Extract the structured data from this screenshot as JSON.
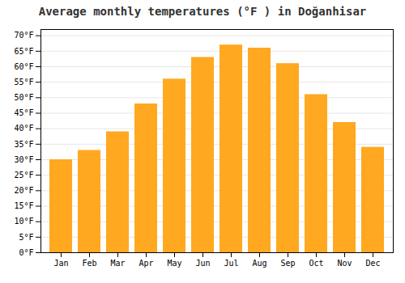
{
  "chart_data": {
    "type": "bar",
    "title": "Average monthly temperatures (°F ) in Doğanhisar",
    "categories": [
      "Jan",
      "Feb",
      "Mar",
      "Apr",
      "May",
      "Jun",
      "Jul",
      "Aug",
      "Sep",
      "Oct",
      "Nov",
      "Dec"
    ],
    "values": [
      30,
      33,
      39,
      48,
      56,
      63,
      67,
      66,
      61,
      51,
      42,
      34
    ],
    "color": "#FFA820",
    "ylim": [
      0,
      72
    ],
    "yticks": [
      {
        "value": 0,
        "label": "0°F"
      },
      {
        "value": 5,
        "label": "5°F"
      },
      {
        "value": 10,
        "label": "10°F"
      },
      {
        "value": 15,
        "label": "15°F"
      },
      {
        "value": 20,
        "label": "20°F"
      },
      {
        "value": 25,
        "label": "25°F"
      },
      {
        "value": 30,
        "label": "30°F"
      },
      {
        "value": 35,
        "label": "35°F"
      },
      {
        "value": 40,
        "label": "40°F"
      },
      {
        "value": 45,
        "label": "45°F"
      },
      {
        "value": 50,
        "label": "50°F"
      },
      {
        "value": 55,
        "label": "55°F"
      },
      {
        "value": 60,
        "label": "60°F"
      },
      {
        "value": 65,
        "label": "65°F"
      },
      {
        "value": 70,
        "label": "70°F"
      }
    ],
    "grid": true
  }
}
